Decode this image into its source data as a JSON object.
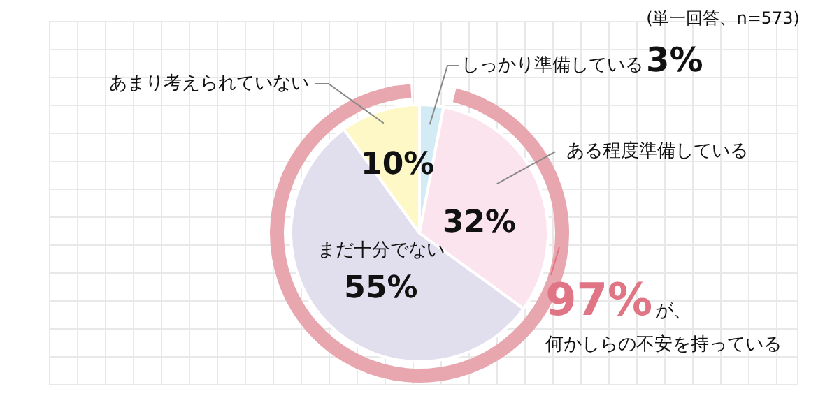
{
  "chart_data": {
    "type": "pie",
    "categories": [
      "しっかり準備している",
      "ある程度準備している",
      "まだ十分でない",
      "あまり考えられていない"
    ],
    "values": [
      3,
      32,
      55,
      10
    ],
    "value_labels": [
      "3%",
      "32%",
      "55%",
      "10%"
    ],
    "colors": [
      "#d3ebf5",
      "#fce4ee",
      "#e1deee",
      "#fdf8c6"
    ],
    "legend": false,
    "annotations": [
      "(単一回答、n=573)",
      "97%が、何かしらの不安を持っている"
    ]
  }
}
